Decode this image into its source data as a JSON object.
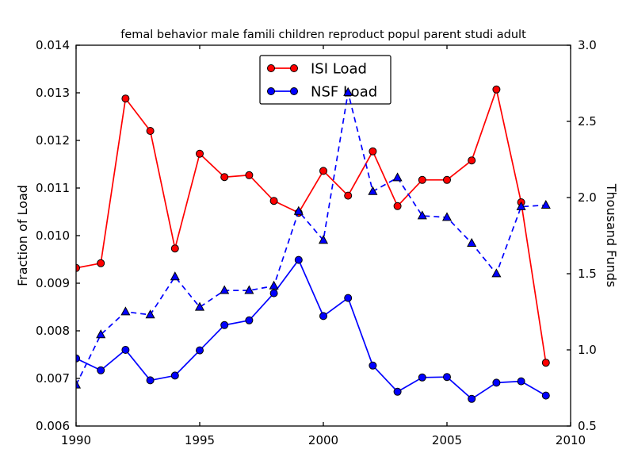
{
  "figure": {
    "background": "#ffffff"
  },
  "chart_data": {
    "type": "line",
    "title": "femal behavior male famili children reproduct popul parent studi adult",
    "x": [
      1990,
      1991,
      1992,
      1993,
      1994,
      1995,
      1996,
      1997,
      1998,
      1999,
      2000,
      2001,
      2002,
      2003,
      2004,
      2005,
      2006,
      2007,
      2008,
      2009
    ],
    "xlim": [
      1990,
      2010
    ],
    "xtick_labels": [
      "1990",
      "1995",
      "2000",
      "2005",
      "2010"
    ],
    "axes": {
      "left": {
        "label": "Fraction of Load",
        "lim": [
          0.006,
          0.014
        ],
        "tick_labels": [
          "0.006",
          "0.007",
          "0.008",
          "0.009",
          "0.010",
          "0.011",
          "0.012",
          "0.013",
          "0.014"
        ]
      },
      "right": {
        "label": "Thousand Funds",
        "lim": [
          0.5,
          3.0
        ],
        "tick_labels": [
          "0.5",
          "1.0",
          "1.5",
          "2.0",
          "2.5",
          "3.0"
        ]
      }
    },
    "series": [
      {
        "id": "isi-load",
        "label": "ISI Load",
        "axis": "left",
        "color": "#ff0000",
        "line": "solid",
        "marker": "circle",
        "in_legend": true,
        "values": [
          0.00932,
          0.00942,
          0.01288,
          0.0122,
          0.00973,
          0.01172,
          0.01123,
          0.01127,
          0.01073,
          0.01048,
          0.01136,
          0.01084,
          0.01177,
          0.01062,
          0.01117,
          0.01117,
          0.01158,
          0.01307,
          0.0107,
          0.00733
        ]
      },
      {
        "id": "nsf-load",
        "label": "NSF Load",
        "axis": "left",
        "color": "#0000ff",
        "line": "solid",
        "marker": "circle",
        "in_legend": true,
        "values": [
          0.00742,
          0.00717,
          0.0076,
          0.00696,
          0.00706,
          0.00759,
          0.00812,
          0.00822,
          0.00879,
          0.00949,
          0.00831,
          0.00869,
          0.00727,
          0.00672,
          0.00702,
          0.00703,
          0.00657,
          0.00691,
          0.00694,
          0.00664
        ]
      },
      {
        "id": "funds",
        "label": "",
        "axis": "right",
        "color": "#0000ff",
        "line": "dashed",
        "marker": "triangle",
        "in_legend": false,
        "values": [
          0.77,
          1.1,
          1.25,
          1.23,
          1.48,
          1.28,
          1.39,
          1.39,
          1.42,
          1.91,
          1.72,
          2.69,
          2.04,
          2.13,
          1.88,
          1.87,
          1.7,
          1.5,
          1.94,
          1.95
        ]
      }
    ],
    "legend": {
      "position": "upper-center",
      "entries": [
        0,
        1
      ]
    },
    "marker_edge_color": "#000000",
    "frame_color": "#000000",
    "grid": false
  }
}
